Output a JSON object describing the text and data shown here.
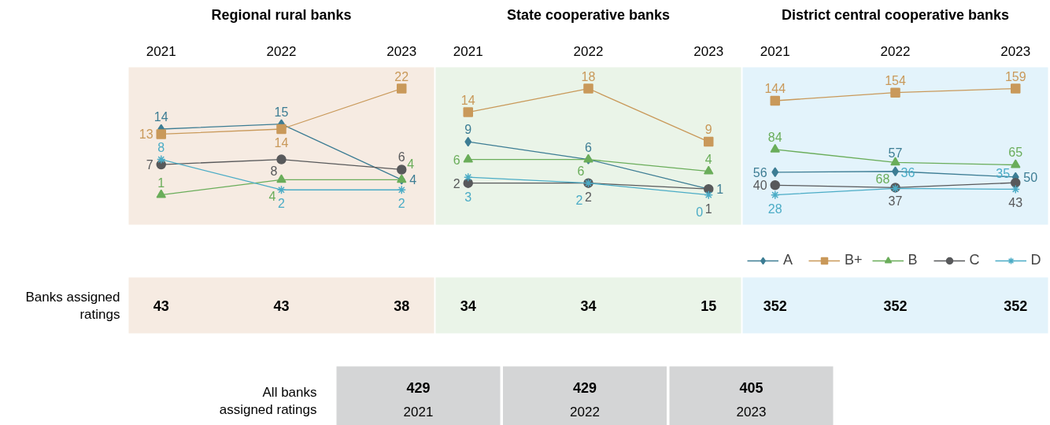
{
  "chart_data": [
    {
      "type": "line",
      "title": "Regional rural banks",
      "categories": [
        "2021",
        "2022",
        "2023"
      ],
      "tick_labels": "x",
      "data_labels": true,
      "legend": false,
      "totals": [
        "43",
        "43",
        "38"
      ],
      "series": [
        {
          "color": "#3d7d94",
          "marker": "diamond",
          "values": [
            14,
            15,
            4
          ]
        },
        {
          "color": "#c9995a",
          "marker": "square",
          "values": [
            13,
            14,
            22
          ]
        },
        {
          "color": "#6aad5a",
          "marker": "triangle",
          "values": [
            1,
            4,
            4
          ]
        },
        {
          "color": "#58595b",
          "marker": "circle",
          "values": [
            7,
            8,
            6
          ]
        },
        {
          "color": "#4bacc6",
          "marker": "cross",
          "values": [
            8,
            2,
            2
          ]
        }
      ]
    },
    {
      "type": "line",
      "title": "State cooperative banks",
      "categories": [
        "2021",
        "2022",
        "2023"
      ],
      "tick_labels": "x",
      "data_labels": true,
      "legend": false,
      "totals": [
        "34",
        "34",
        "15"
      ],
      "series": [
        {
          "color": "#3d7d94",
          "marker": "diamond",
          "values": [
            9,
            6,
            1
          ]
        },
        {
          "color": "#c9995a",
          "marker": "square",
          "values": [
            14,
            18,
            9
          ]
        },
        {
          "color": "#6aad5a",
          "marker": "triangle",
          "values": [
            6,
            6,
            4
          ]
        },
        {
          "color": "#58595b",
          "marker": "circle",
          "values": [
            2,
            2,
            1
          ]
        },
        {
          "color": "#4bacc6",
          "marker": "cross",
          "values": [
            3,
            2,
            0
          ]
        }
      ]
    },
    {
      "type": "line",
      "title": "District central cooperative banks",
      "categories": [
        "2021",
        "2022",
        "2023"
      ],
      "tick_labels": "x",
      "data_labels": true,
      "legend": "bottom right",
      "totals": [
        "352",
        "352",
        "352"
      ],
      "series": [
        {
          "name": "A",
          "color": "#3d7d94",
          "marker": "diamond",
          "values": [
            56,
            57,
            50
          ]
        },
        {
          "name": "B+",
          "color": "#c9995a",
          "marker": "square",
          "values": [
            144,
            154,
            159
          ]
        },
        {
          "name": "B",
          "color": "#6aad5a",
          "marker": "triangle",
          "values": [
            84,
            68,
            65
          ]
        },
        {
          "name": "C",
          "color": "#58595b",
          "marker": "circle",
          "values": [
            40,
            37,
            43
          ]
        },
        {
          "name": "D",
          "color": "#4bacc6",
          "marker": "cross",
          "values": [
            28,
            36,
            35
          ]
        }
      ]
    },
    {
      "type": "other",
      "annotations": [
        "Banks assigned ratings",
        "All banks assigned ratings"
      ],
      "categories": [
        "2021",
        "2022",
        "2023"
      ],
      "values": [
        429,
        429,
        405
      ],
      "data_labels": true
    }
  ]
}
